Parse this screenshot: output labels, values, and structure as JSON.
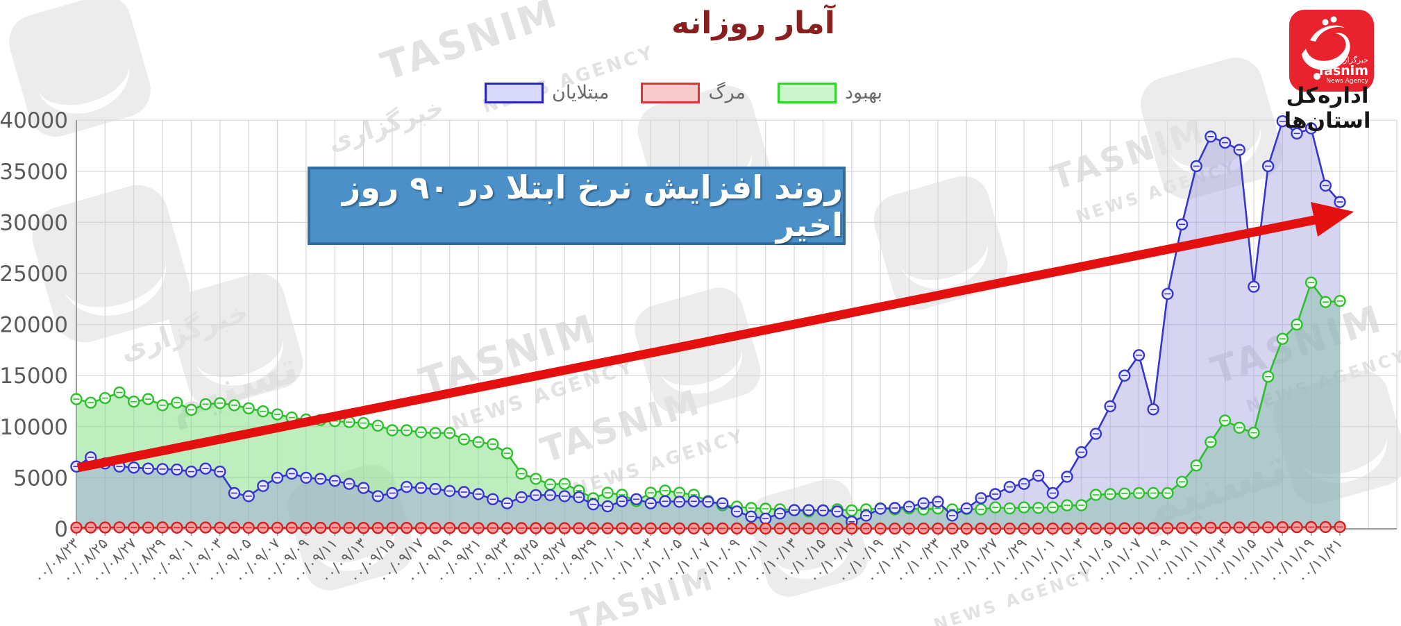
{
  "header": {
    "title": "آمار روزانه"
  },
  "branding": {
    "agency_fa": "خبرگزاری",
    "agency_en": "Tasnim",
    "agency_sub": "News Agency",
    "department": "اداره‌کل استان‌ها",
    "logo_color": "#e8232e"
  },
  "watermark": {
    "text_en": "TASNIM",
    "text_sub": "NEWS AGENCY",
    "text_fa_1": "خبرگزاری",
    "text_fa_2": "تسنیم"
  },
  "legend": [
    {
      "label": "مبتلایان",
      "line_color": "#3535cf",
      "swatch_fill": "#d8d8f8",
      "swatch_border": "#2626c0"
    },
    {
      "label": "مرگ",
      "line_color": "#d42222",
      "swatch_fill": "#f8cbcb",
      "swatch_border": "#e03434"
    },
    {
      "label": "بهبود",
      "line_color": "#2ebf2e",
      "swatch_fill": "#ccf5cc",
      "swatch_border": "#2fd42f"
    }
  ],
  "annotation": {
    "text": "روند افزایش نرخ ابتلا در ۹۰ روز اخیر",
    "bg": "#4b90c8",
    "border": "#2f6ba5",
    "arrow_color": "#e41010"
  },
  "chart_data": {
    "type": "line",
    "title": "آمار روزانه",
    "xlabel": "",
    "ylabel": "",
    "ylim": [
      0,
      40000
    ],
    "grid": true,
    "legend_position": "top",
    "marker": "circle",
    "y_ticks": [
      0,
      5000,
      10000,
      15000,
      20000,
      25000,
      30000,
      35000,
      40000
    ],
    "y_tick_labels": [
      "0",
      "5000",
      "10000",
      "15000",
      "20000",
      "25000",
      "30000",
      "35000",
      "40000"
    ],
    "x_tick_labels": [
      "۰۰/۰۸/۲۳",
      "۰۰/۰۸/۲۵",
      "۰۰/۰۸/۲۷",
      "۰۰/۰۸/۲۹",
      "۰۰/۰۹/۰۱",
      "۰۰/۰۹/۰۳",
      "۰۰/۰۹/۰۵",
      "۰۰/۰۹/۰۷",
      "۰۰/۰۹/۰۹",
      "۰۰/۰۹/۱۱",
      "۰۰/۰۹/۱۳",
      "۰۰/۰۹/۱۵",
      "۰۰/۰۹/۱۷",
      "۰۰/۰۹/۱۹",
      "۰۰/۰۹/۲۱",
      "۰۰/۰۹/۲۳",
      "۰۰/۰۹/۲۵",
      "۰۰/۰۹/۲۷",
      "۰۰/۰۹/۲۹",
      "۰۰/۱۰/۰۱",
      "۰۰/۱۰/۰۳",
      "۰۰/۱۰/۰۵",
      "۰۰/۱۰/۰۷",
      "۰۰/۱۰/۰۹",
      "۰۰/۱۰/۱۱",
      "۰۰/۱۰/۱۳",
      "۰۰/۱۰/۱۵",
      "۰۰/۱۰/۱۷",
      "۰۰/۱۰/۱۹",
      "۰۰/۱۰/۲۱",
      "۰۰/۱۰/۲۳",
      "۰۰/۱۰/۲۵",
      "۰۰/۱۰/۲۷",
      "۰۰/۱۰/۲۹",
      "۰۰/۱۱/۰۱",
      "۰۰/۱۱/۰۳",
      "۰۰/۱۱/۰۵",
      "۰۰/۱۱/۰۷",
      "۰۰/۱۱/۰۹",
      "۰۰/۱۱/۱۱",
      "۰۰/۱۱/۱۳",
      "۰۰/۱۱/۱۵",
      "۰۰/۱۱/۱۷",
      "۰۰/۱۱/۱۹",
      "۰۰/۱۱/۲۱"
    ],
    "series": [
      {
        "name": "مبتلایان",
        "color": "#3535cf",
        "fill": "#9a9ae0",
        "values": [
          6100,
          7000,
          6400,
          6100,
          6000,
          5900,
          5850,
          5800,
          5600,
          5900,
          5600,
          3500,
          3200,
          4200,
          5000,
          5400,
          5000,
          4900,
          4700,
          4400,
          4000,
          3200,
          3500,
          4100,
          4000,
          3900,
          3700,
          3600,
          3400,
          2900,
          2500,
          3100,
          3300,
          3300,
          3200,
          3100,
          2400,
          2200,
          2700,
          2900,
          2500,
          2700,
          2650,
          2700,
          2650,
          2500,
          1700,
          1200,
          1000,
          1500,
          1830,
          1830,
          1800,
          1700,
          700,
          1300,
          1970,
          2040,
          2170,
          2510,
          2650,
          1300,
          2000,
          3000,
          3400,
          4100,
          4400,
          5200,
          3500,
          5100,
          7500,
          9300,
          12000,
          15000,
          17000,
          11700,
          23000,
          29800,
          35500,
          38400,
          37800,
          37100,
          23700,
          35500,
          39900,
          38700,
          39200,
          33600,
          32000
        ]
      },
      {
        "name": "مرگ",
        "color": "#d42222",
        "fill": "#f49090",
        "values": [
          125,
          130,
          128,
          140,
          119,
          122,
          135,
          118,
          130,
          127,
          115,
          121,
          110,
          108,
          112,
          105,
          98,
          95,
          102,
          96,
          90,
          88,
          92,
          85,
          83,
          80,
          86,
          79,
          75,
          72,
          70,
          68,
          65,
          62,
          60,
          58,
          61,
          55,
          52,
          50,
          48,
          45,
          47,
          44,
          42,
          40,
          41,
          38,
          36,
          35,
          37,
          34,
          33,
          30,
          31,
          29,
          28,
          27,
          26,
          25,
          26,
          24,
          23,
          25,
          22,
          24,
          26,
          28,
          30,
          33,
          36,
          40,
          45,
          52,
          58,
          65,
          74,
          83,
          95,
          108,
          120,
          131,
          142,
          150,
          158,
          165,
          172,
          178,
          185
        ]
      },
      {
        "name": "بهبود",
        "color": "#2ebf2e",
        "fill": "#7ddc7d",
        "values": [
          12700,
          12350,
          12800,
          13350,
          12450,
          12700,
          12100,
          12350,
          11650,
          12200,
          12300,
          12100,
          11800,
          11500,
          11200,
          10900,
          10700,
          10650,
          10550,
          10450,
          10350,
          10100,
          9650,
          9650,
          9450,
          9380,
          9380,
          8760,
          8490,
          8290,
          7400,
          5400,
          4900,
          4350,
          4400,
          3740,
          2990,
          3530,
          3330,
          2720,
          3530,
          3740,
          3530,
          3330,
          2720,
          2300,
          2170,
          2040,
          1970,
          1900,
          1830,
          1700,
          1800,
          1900,
          1800,
          1900,
          2000,
          1900,
          2000,
          1900,
          2000,
          1900,
          1950,
          1900,
          2100,
          2000,
          2100,
          2050,
          2100,
          2300,
          2310,
          3330,
          3400,
          3450,
          3500,
          3500,
          3500,
          4600,
          6200,
          8500,
          10600,
          9900,
          9400,
          14900,
          18600,
          20000,
          24100,
          22200,
          22300
        ]
      }
    ]
  }
}
